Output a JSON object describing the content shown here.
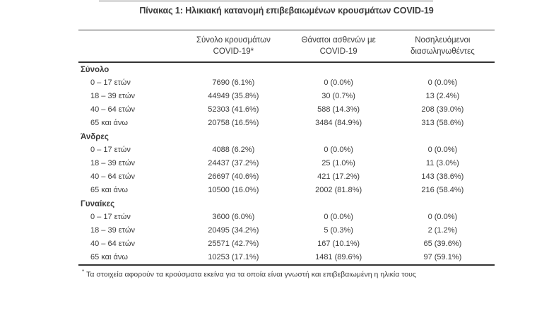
{
  "page": {
    "title": "Πίνακας 1: Ηλικιακή κατανομή επιβεβαιωμένων κρουσμάτων COVID-19",
    "footnote_marker": "*",
    "footnote_text": "Τα στοιχεία αφορούν τα κρούσματα εκείνα για τα οποία είναι γνωστή και επιβεβαιωμένη η ηλικία τους"
  },
  "colors": {
    "text": "#3b3b3b",
    "rule": "#333333",
    "top_strip": "#d9d9d9"
  },
  "table": {
    "columns": [
      {
        "line1": "",
        "line2": ""
      },
      {
        "line1": "Σύνολο κρουσμάτων",
        "line2": "COVID-19*"
      },
      {
        "line1": "Θάνατοι ασθενών με",
        "line2": "COVID-19"
      },
      {
        "line1": "Νοσηλευόμενοι",
        "line2": "διασωληνωθέντες"
      }
    ],
    "sections": [
      {
        "label": "Σύνολο",
        "rows": [
          {
            "label": "0 – 17 ετών",
            "cases": "7690 (6.1%)",
            "deaths": "0 (0.0%)",
            "intubated": "0 (0.0%)"
          },
          {
            "label": "18 – 39 ετών",
            "cases": "44949 (35.8%)",
            "deaths": "30 (0.7%)",
            "intubated": "13 (2.4%)"
          },
          {
            "label": "40 – 64 ετών",
            "cases": "52303 (41.6%)",
            "deaths": "588 (14.3%)",
            "intubated": "208 (39.0%)"
          },
          {
            "label": "65 και άνω",
            "cases": "20758 (16.5%)",
            "deaths": "3484 (84.9%)",
            "intubated": "313 (58.6%)"
          }
        ]
      },
      {
        "label": "Άνδρες",
        "rows": [
          {
            "label": "0 – 17 ετών",
            "cases": "4088 (6.2%)",
            "deaths": "0 (0.0%)",
            "intubated": "0 (0.0%)"
          },
          {
            "label": "18 – 39 ετών",
            "cases": "24437 (37.2%)",
            "deaths": "25 (1.0%)",
            "intubated": "11 (3.0%)"
          },
          {
            "label": "40 – 64 ετών",
            "cases": "26697 (40.6%)",
            "deaths": "421 (17.2%)",
            "intubated": "143 (38.6%)"
          },
          {
            "label": "65 και άνω",
            "cases": "10500 (16.0%)",
            "deaths": "2002 (81.8%)",
            "intubated": "216 (58.4%)"
          }
        ]
      },
      {
        "label": "Γυναίκες",
        "rows": [
          {
            "label": "0 – 17 ετών",
            "cases": "3600 (6.0%)",
            "deaths": "0 (0.0%)",
            "intubated": "0 (0.0%)"
          },
          {
            "label": "18 – 39 ετών",
            "cases": "20495 (34.2%)",
            "deaths": "5 (0.3%)",
            "intubated": "2 (1.2%)"
          },
          {
            "label": "40 – 64 ετών",
            "cases": "25571 (42.7%)",
            "deaths": "167 (10.1%)",
            "intubated": "65 (39.6%)"
          },
          {
            "label": "65 και άνω",
            "cases": "10253 (17.1%)",
            "deaths": "1481 (89.6%)",
            "intubated": "97 (59.1%)"
          }
        ]
      }
    ]
  }
}
